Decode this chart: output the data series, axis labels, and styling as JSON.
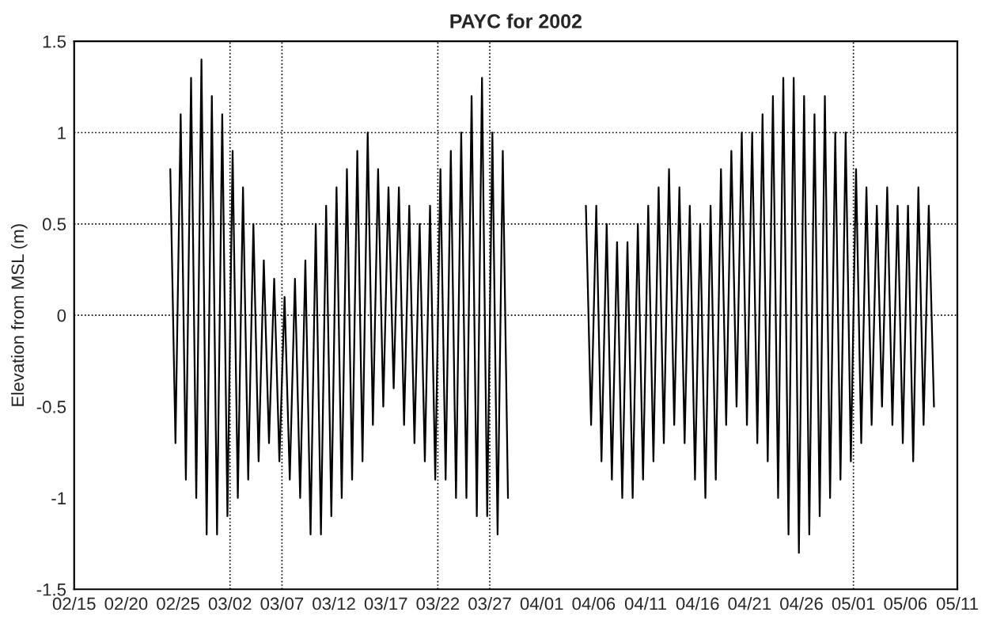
{
  "chart_data": {
    "type": "line",
    "title": "PAYC for 2002",
    "ylabel": "Elevation from MSL (m)",
    "xlim": [
      "2002-02-15",
      "2002-05-11"
    ],
    "xticks": [
      {
        "value": "2002-02-15",
        "label": "02/15"
      },
      {
        "value": "2002-02-20",
        "label": "02/20"
      },
      {
        "value": "2002-02-25",
        "label": "02/25"
      },
      {
        "value": "2002-03-02",
        "label": "03/02"
      },
      {
        "value": "2002-03-07",
        "label": "03/07"
      },
      {
        "value": "2002-03-12",
        "label": "03/12"
      },
      {
        "value": "2002-03-17",
        "label": "03/17"
      },
      {
        "value": "2002-03-22",
        "label": "03/22"
      },
      {
        "value": "2002-03-27",
        "label": "03/27"
      },
      {
        "value": "2002-04-01",
        "label": "04/01"
      },
      {
        "value": "2002-04-06",
        "label": "04/06"
      },
      {
        "value": "2002-04-11",
        "label": "04/11"
      },
      {
        "value": "2002-04-16",
        "label": "04/16"
      },
      {
        "value": "2002-04-21",
        "label": "04/21"
      },
      {
        "value": "2002-04-26",
        "label": "04/26"
      },
      {
        "value": "2002-05-01",
        "label": "05/01"
      },
      {
        "value": "2002-05-06",
        "label": "05/06"
      },
      {
        "value": "2002-05-11",
        "label": "05/11"
      }
    ],
    "ylim": [
      -1.5,
      1.5
    ],
    "yticks": [
      -1.5,
      -1,
      -0.5,
      0,
      0.5,
      1,
      1.5
    ],
    "ref_lines": [
      {
        "axis": "y",
        "value": 0,
        "color": "#000000",
        "line_style": "dotted"
      },
      {
        "axis": "y",
        "value": 0.5,
        "color": "#000000",
        "line_style": "dotted"
      },
      {
        "axis": "y",
        "value": 1,
        "color": "#000000",
        "line_style": "dotted"
      },
      {
        "axis": "x",
        "value": "2002-03-02",
        "color": "#000000",
        "line_style": "dotted"
      },
      {
        "axis": "x",
        "value": "2002-03-07",
        "color": "#000000",
        "line_style": "dotted"
      },
      {
        "axis": "x",
        "value": "2002-03-22",
        "color": "#000000",
        "line_style": "dotted"
      },
      {
        "axis": "x",
        "value": "2002-03-27",
        "color": "#000000",
        "line_style": "dotted"
      },
      {
        "axis": "x",
        "value": "2002-05-01",
        "color": "#000000",
        "line_style": "dotted"
      }
    ],
    "grid": false,
    "legend": false,
    "marker": "none",
    "line_style": "solid",
    "series": [
      {
        "color": "#000000",
        "x": [
          "2002-02-24T06:00",
          "2002-02-24T18:00",
          "2002-02-25T06:00",
          "2002-02-25T18:00",
          "2002-02-26T06:00",
          "2002-02-26T18:00",
          "2002-02-27T06:00",
          "2002-02-27T18:00",
          "2002-02-28T06:00",
          "2002-02-28T18:00",
          "2002-03-01T06:00",
          "2002-03-01T18:00",
          "2002-03-02T06:00",
          "2002-03-02T18:00",
          "2002-03-03T06:00",
          "2002-03-03T18:00",
          "2002-03-04T06:00",
          "2002-03-04T18:00",
          "2002-03-05T06:00",
          "2002-03-05T18:00",
          "2002-03-06T06:00",
          "2002-03-06T18:00",
          "2002-03-07T06:00",
          "2002-03-07T18:00",
          "2002-03-08T06:00",
          "2002-03-08T18:00",
          "2002-03-09T06:00",
          "2002-03-09T18:00",
          "2002-03-10T06:00",
          "2002-03-10T18:00",
          "2002-03-11T06:00",
          "2002-03-11T18:00",
          "2002-03-12T06:00",
          "2002-03-12T18:00",
          "2002-03-13T06:00",
          "2002-03-13T18:00",
          "2002-03-14T06:00",
          "2002-03-14T18:00",
          "2002-03-15T06:00",
          "2002-03-15T18:00",
          "2002-03-16T06:00",
          "2002-03-16T18:00",
          "2002-03-17T06:00",
          "2002-03-17T18:00",
          "2002-03-18T06:00",
          "2002-03-18T18:00",
          "2002-03-19T06:00",
          "2002-03-19T18:00",
          "2002-03-20T06:00",
          "2002-03-20T18:00",
          "2002-03-21T06:00",
          "2002-03-21T18:00",
          "2002-03-22T06:00",
          "2002-03-22T18:00",
          "2002-03-23T06:00",
          "2002-03-23T18:00",
          "2002-03-24T06:00",
          "2002-03-24T18:00",
          "2002-03-25T06:00",
          "2002-03-25T18:00",
          "2002-03-26T06:00",
          "2002-03-26T18:00",
          "2002-03-27T06:00",
          "2002-03-27T18:00",
          "2002-03-28T06:00",
          "2002-03-28T18:00",
          "2002-04-01T00:00",
          "2002-04-05T06:00",
          "2002-04-05T18:00",
          "2002-04-06T06:00",
          "2002-04-06T18:00",
          "2002-04-07T06:00",
          "2002-04-07T18:00",
          "2002-04-08T06:00",
          "2002-04-08T18:00",
          "2002-04-09T06:00",
          "2002-04-09T18:00",
          "2002-04-10T06:00",
          "2002-04-10T18:00",
          "2002-04-11T06:00",
          "2002-04-11T18:00",
          "2002-04-12T06:00",
          "2002-04-12T18:00",
          "2002-04-13T06:00",
          "2002-04-13T18:00",
          "2002-04-14T06:00",
          "2002-04-14T18:00",
          "2002-04-15T06:00",
          "2002-04-15T18:00",
          "2002-04-16T06:00",
          "2002-04-16T18:00",
          "2002-04-17T06:00",
          "2002-04-17T18:00",
          "2002-04-18T06:00",
          "2002-04-18T18:00",
          "2002-04-19T06:00",
          "2002-04-19T18:00",
          "2002-04-20T06:00",
          "2002-04-20T18:00",
          "2002-04-21T06:00",
          "2002-04-21T18:00",
          "2002-04-22T06:00",
          "2002-04-22T18:00",
          "2002-04-23T06:00",
          "2002-04-23T18:00",
          "2002-04-24T06:00",
          "2002-04-24T18:00",
          "2002-04-25T06:00",
          "2002-04-25T18:00",
          "2002-04-26T06:00",
          "2002-04-26T18:00",
          "2002-04-27T06:00",
          "2002-04-27T18:00",
          "2002-04-28T06:00",
          "2002-04-28T18:00",
          "2002-04-29T06:00",
          "2002-04-29T18:00",
          "2002-04-30T06:00",
          "2002-04-30T18:00",
          "2002-05-01T06:00",
          "2002-05-01T18:00",
          "2002-05-02T06:00",
          "2002-05-02T18:00",
          "2002-05-03T06:00",
          "2002-05-03T18:00",
          "2002-05-04T06:00",
          "2002-05-04T18:00",
          "2002-05-05T06:00",
          "2002-05-05T18:00",
          "2002-05-06T06:00",
          "2002-05-06T18:00",
          "2002-05-07T06:00",
          "2002-05-07T18:00",
          "2002-05-08T06:00",
          "2002-05-08T18:00"
        ],
        "values": [
          0.8,
          -0.7,
          1.1,
          -0.9,
          1.3,
          -1.0,
          1.4,
          -1.2,
          1.2,
          -1.2,
          1.1,
          -1.1,
          0.9,
          -1.0,
          0.7,
          -0.9,
          0.5,
          -0.8,
          0.3,
          -0.7,
          0.2,
          -0.8,
          0.1,
          -0.9,
          0.2,
          -1.0,
          0.3,
          -1.2,
          0.5,
          -1.2,
          0.6,
          -1.1,
          0.7,
          -1.0,
          0.8,
          -0.9,
          0.9,
          -0.8,
          1.0,
          -0.6,
          0.8,
          -0.5,
          0.7,
          -0.4,
          0.7,
          -0.6,
          0.6,
          -0.7,
          0.5,
          -0.8,
          0.6,
          -0.9,
          0.8,
          -0.9,
          0.9,
          -1.0,
          1.0,
          -1.0,
          1.2,
          -1.1,
          1.3,
          -1.1,
          1.0,
          -1.2,
          0.9,
          -1.0,
          null,
          0.6,
          -0.6,
          0.6,
          -0.8,
          0.5,
          -0.9,
          0.4,
          -1.0,
          0.4,
          -1.0,
          0.5,
          -0.9,
          0.6,
          -0.8,
          0.7,
          -0.7,
          0.8,
          -0.6,
          0.7,
          -0.7,
          0.6,
          -0.9,
          0.5,
          -1.0,
          0.6,
          -0.9,
          0.8,
          -0.6,
          0.9,
          -0.5,
          1.0,
          -0.6,
          1.0,
          -0.7,
          1.1,
          -0.8,
          1.2,
          -1.0,
          1.3,
          -1.2,
          1.3,
          -1.3,
          1.2,
          -1.2,
          1.1,
          -1.1,
          1.2,
          -1.0,
          1.0,
          -0.9,
          1.0,
          -0.8,
          0.8,
          -0.7,
          0.7,
          -0.6,
          0.6,
          -0.5,
          0.7,
          -0.6,
          0.6,
          -0.7,
          0.6,
          -0.8,
          0.7,
          -0.6,
          0.6,
          -0.5
        ]
      }
    ]
  }
}
